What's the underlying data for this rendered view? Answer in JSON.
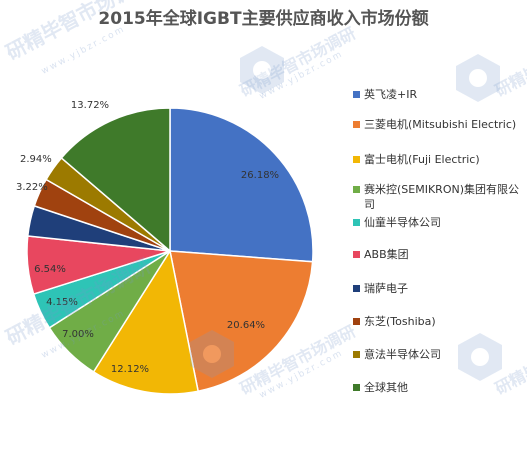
{
  "chart_data": {
    "type": "pie",
    "title": "2015年全球IGBT主要供应商收入市场份额",
    "categories": [
      "英飞凌+IR",
      "三菱电机(Mitsubishi Electric)",
      "富士电机(Fuji Electric)",
      "赛米控(SEMIKRON)集团有限公司",
      "仙童半导体公司",
      "ABB集团",
      "瑞萨电子",
      "东芝(Toshiba)",
      "意法半导体公司",
      "全球其他"
    ],
    "values": [
      26.18,
      20.64,
      12.12,
      7.0,
      4.15,
      6.54,
      3.43,
      3.22,
      2.94,
      13.72
    ],
    "data_labels": [
      "26.18%",
      "20.64%",
      "12.12%",
      "7.00%",
      "4.15%",
      "6.54%",
      "",
      "3.22%",
      "2.94%",
      "13.72%"
    ],
    "colors": [
      "#4472C4",
      "#ED7D31",
      "#F2B705",
      "#70AD47",
      "#2EC4B6",
      "#E8475F",
      "#1F3F7A",
      "#A0420F",
      "#9C7A00",
      "#3F7A2A"
    ],
    "legend_position": "right"
  },
  "watermark": {
    "brand": "研精毕智市场调研",
    "url": "www.yjbzr.com"
  }
}
